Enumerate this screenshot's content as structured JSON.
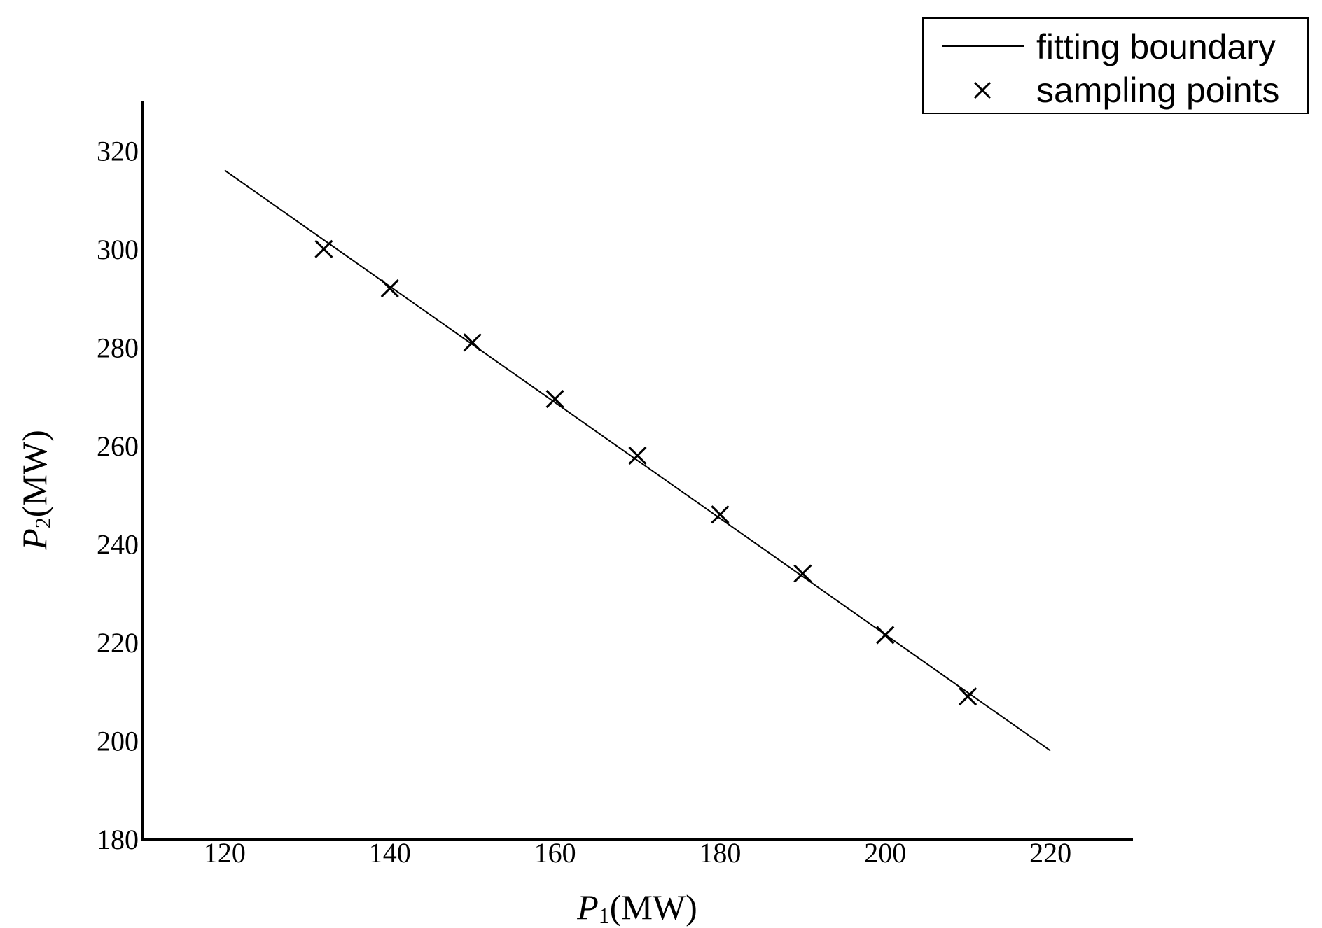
{
  "chart_data": {
    "type": "line",
    "xlabel": {
      "italic": "P",
      "sub": "1",
      "unit": "(MW)"
    },
    "ylabel": {
      "italic": "P",
      "sub": "2",
      "unit": "(MW)"
    },
    "xlim": [
      110,
      230
    ],
    "ylim": [
      180,
      330
    ],
    "xticks": [
      "120",
      "140",
      "160",
      "180",
      "200",
      "220"
    ],
    "yticks": [
      "180",
      "200",
      "220",
      "240",
      "260",
      "280",
      "300",
      "320"
    ],
    "grid": false,
    "legend_position": "top-right",
    "series": [
      {
        "name": "fitting boundary",
        "kind": "line",
        "color": "#000000",
        "x": [
          120,
          220
        ],
        "y": [
          316,
          198
        ]
      },
      {
        "name": "sampling points",
        "kind": "scatter",
        "marker": "x",
        "color": "#000000",
        "x": [
          132,
          140,
          150,
          160,
          170,
          180,
          190,
          200,
          210
        ],
        "y": [
          300,
          292,
          281,
          269.5,
          258,
          246,
          234,
          221.5,
          209
        ]
      }
    ]
  }
}
